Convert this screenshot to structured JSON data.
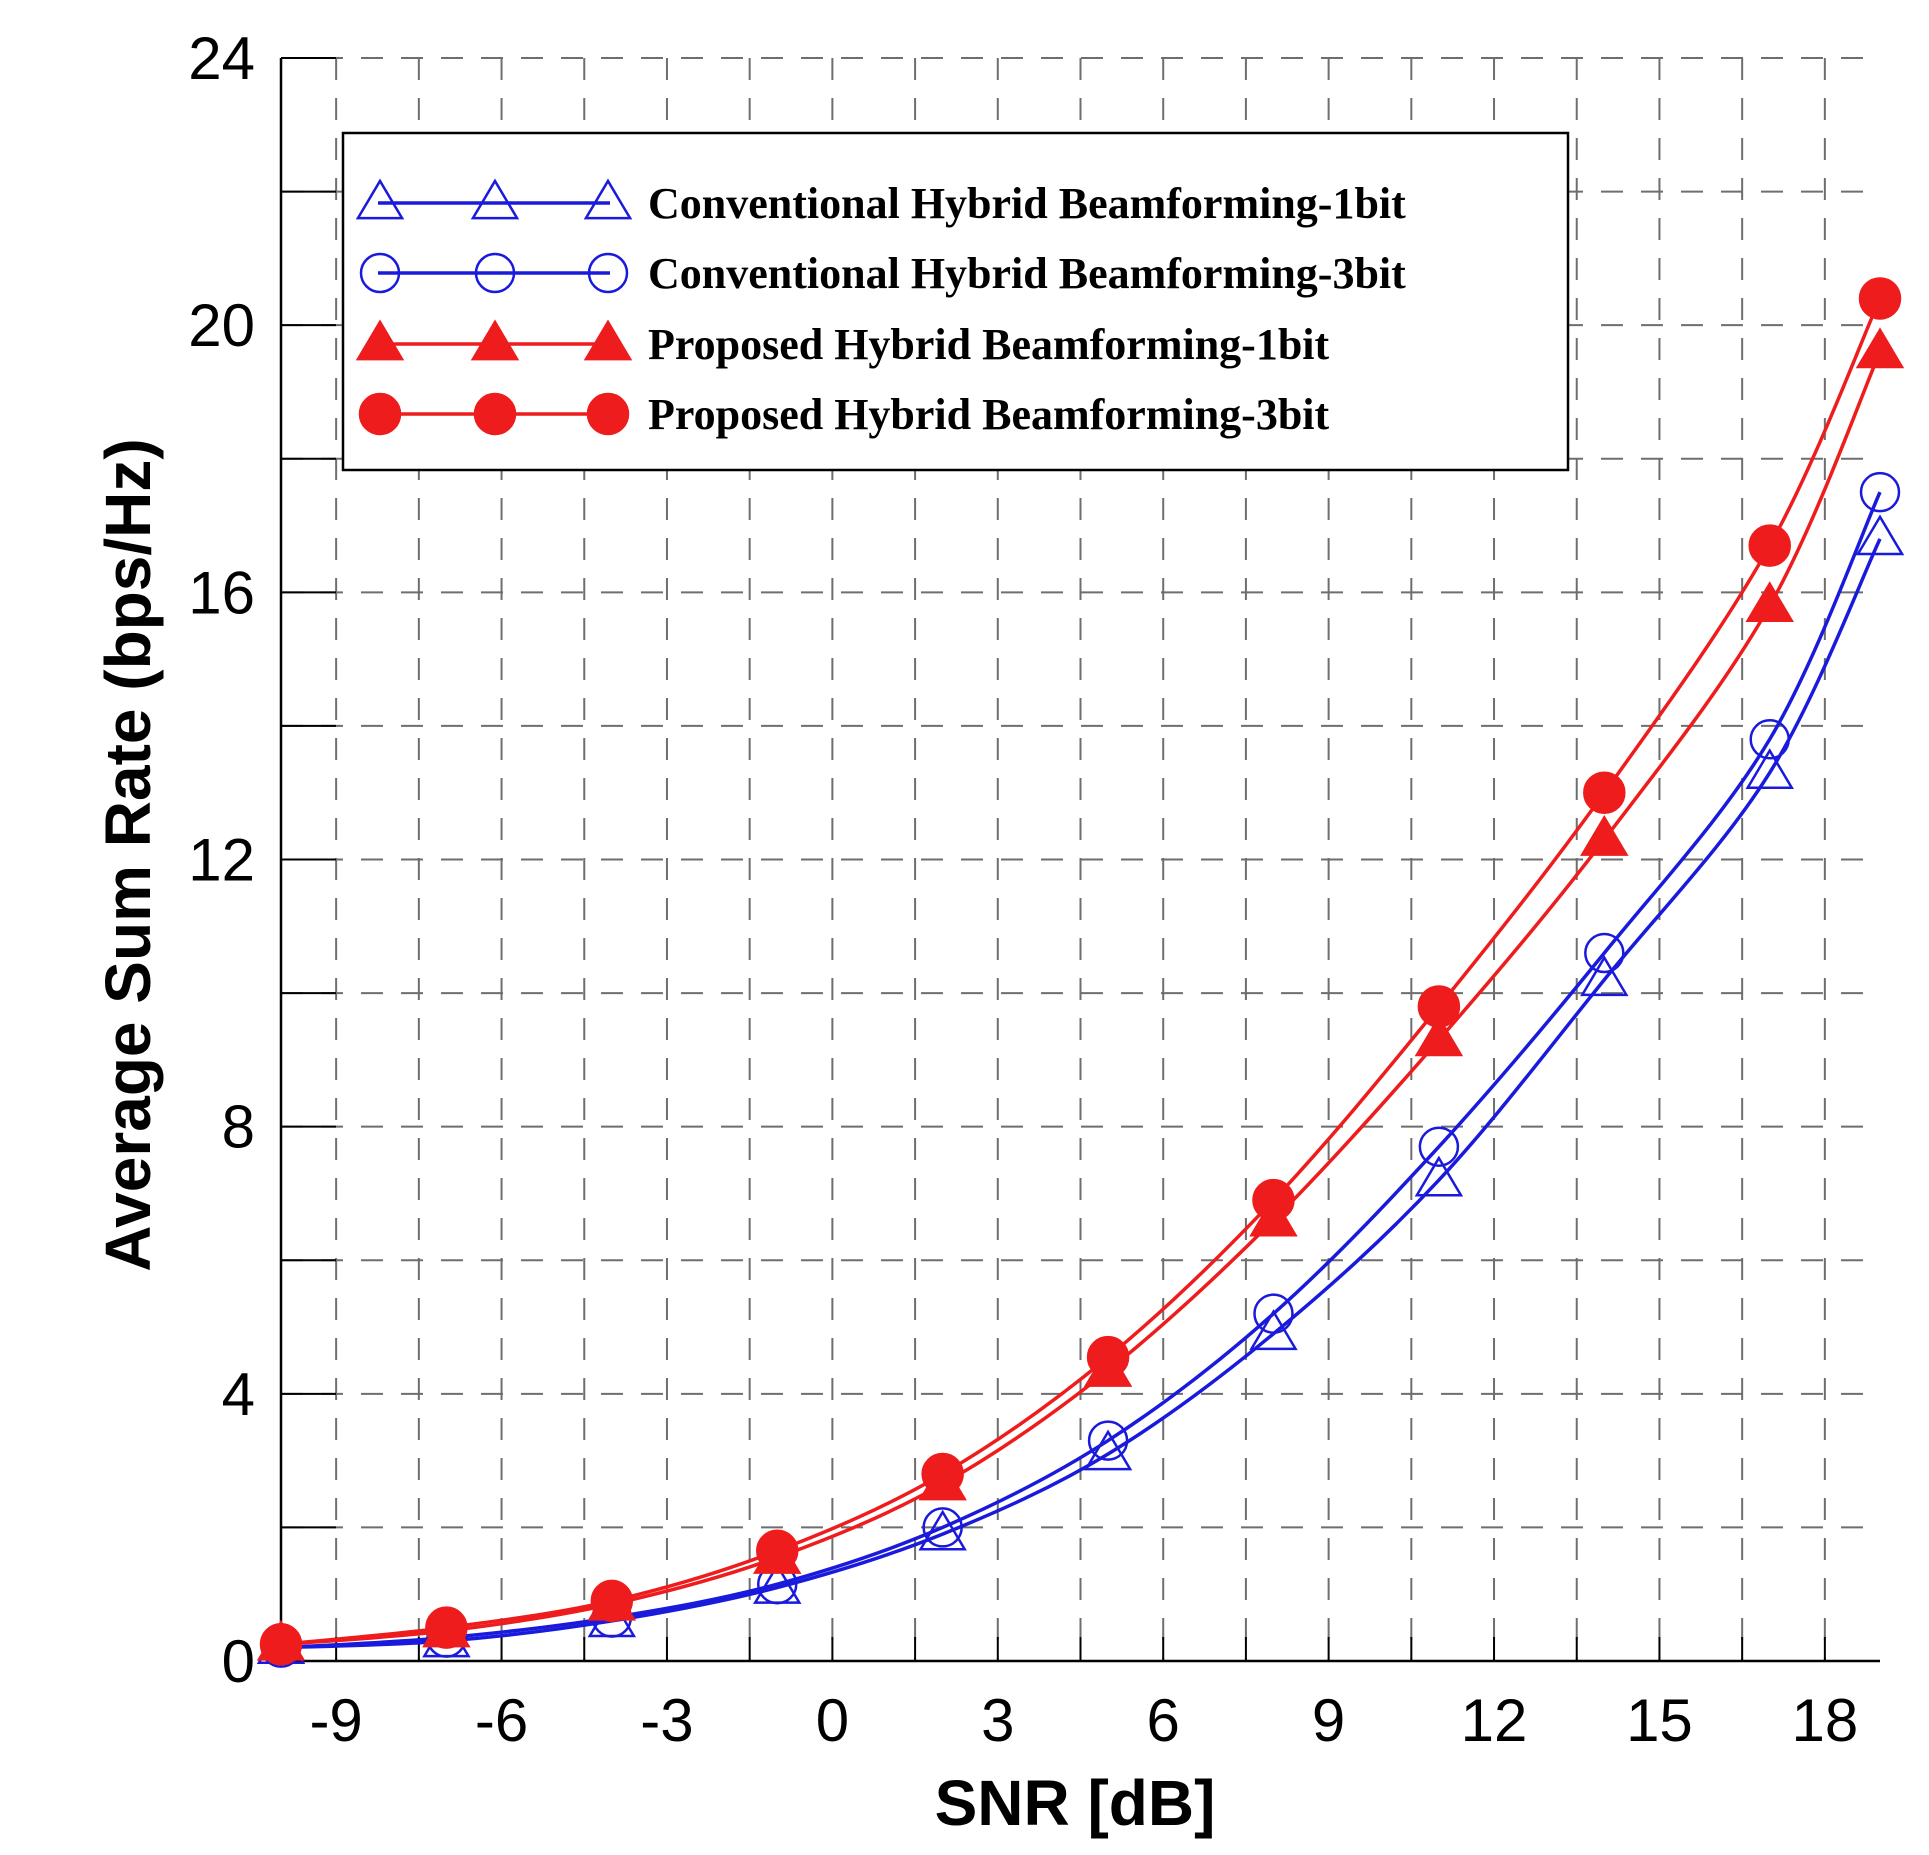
{
  "chart_data": {
    "type": "line",
    "title": "",
    "xlabel": "SNR [dB]",
    "ylabel": "Average Sum Rate (bps/Hz)",
    "xlim": [
      -10,
      19
    ],
    "ylim": [
      0,
      24
    ],
    "xticks": [
      -9,
      -6,
      -3,
      0,
      3,
      6,
      9,
      12,
      15,
      18
    ],
    "xtick_labels": [
      "-9",
      "-6",
      "-3",
      "0",
      "3",
      "6",
      "9",
      "12",
      "15",
      "18"
    ],
    "yticks": [
      0,
      4,
      8,
      12,
      16,
      20,
      24
    ],
    "ytick_labels": [
      "0",
      "4",
      "8",
      "12",
      "16",
      "20",
      "24"
    ],
    "grid": "dashed",
    "legend_position": "top-left",
    "x": [
      -10,
      -7,
      -4,
      -1,
      2,
      5,
      8,
      11,
      14,
      17,
      19
    ],
    "series": [
      {
        "name": "Conventional Hybrid Beamforming-1bit",
        "color": "#1a1adc",
        "marker": "triangle-open",
        "values": [
          0.2,
          0.3,
          0.6,
          1.1,
          1.9,
          3.1,
          4.9,
          7.2,
          10.2,
          13.3,
          16.8
        ]
      },
      {
        "name": "Conventional Hybrid Beamforming-3bit",
        "color": "#1a1adc",
        "marker": "circle-open",
        "values": [
          0.2,
          0.35,
          0.65,
          1.15,
          2.0,
          3.3,
          5.2,
          7.7,
          10.6,
          13.8,
          17.5
        ]
      },
      {
        "name": "Proposed Hybrid Beamforming-1bit",
        "color": "#ee1c1c",
        "marker": "triangle-filled",
        "values": [
          0.25,
          0.45,
          0.85,
          1.55,
          2.65,
          4.35,
          6.6,
          9.3,
          12.3,
          15.8,
          19.6
        ]
      },
      {
        "name": "Proposed Hybrid Beamforming-3bit",
        "color": "#ee1c1c",
        "marker": "circle-filled",
        "values": [
          0.25,
          0.5,
          0.9,
          1.65,
          2.8,
          4.55,
          6.9,
          9.8,
          13.0,
          16.7,
          20.4
        ]
      }
    ]
  }
}
